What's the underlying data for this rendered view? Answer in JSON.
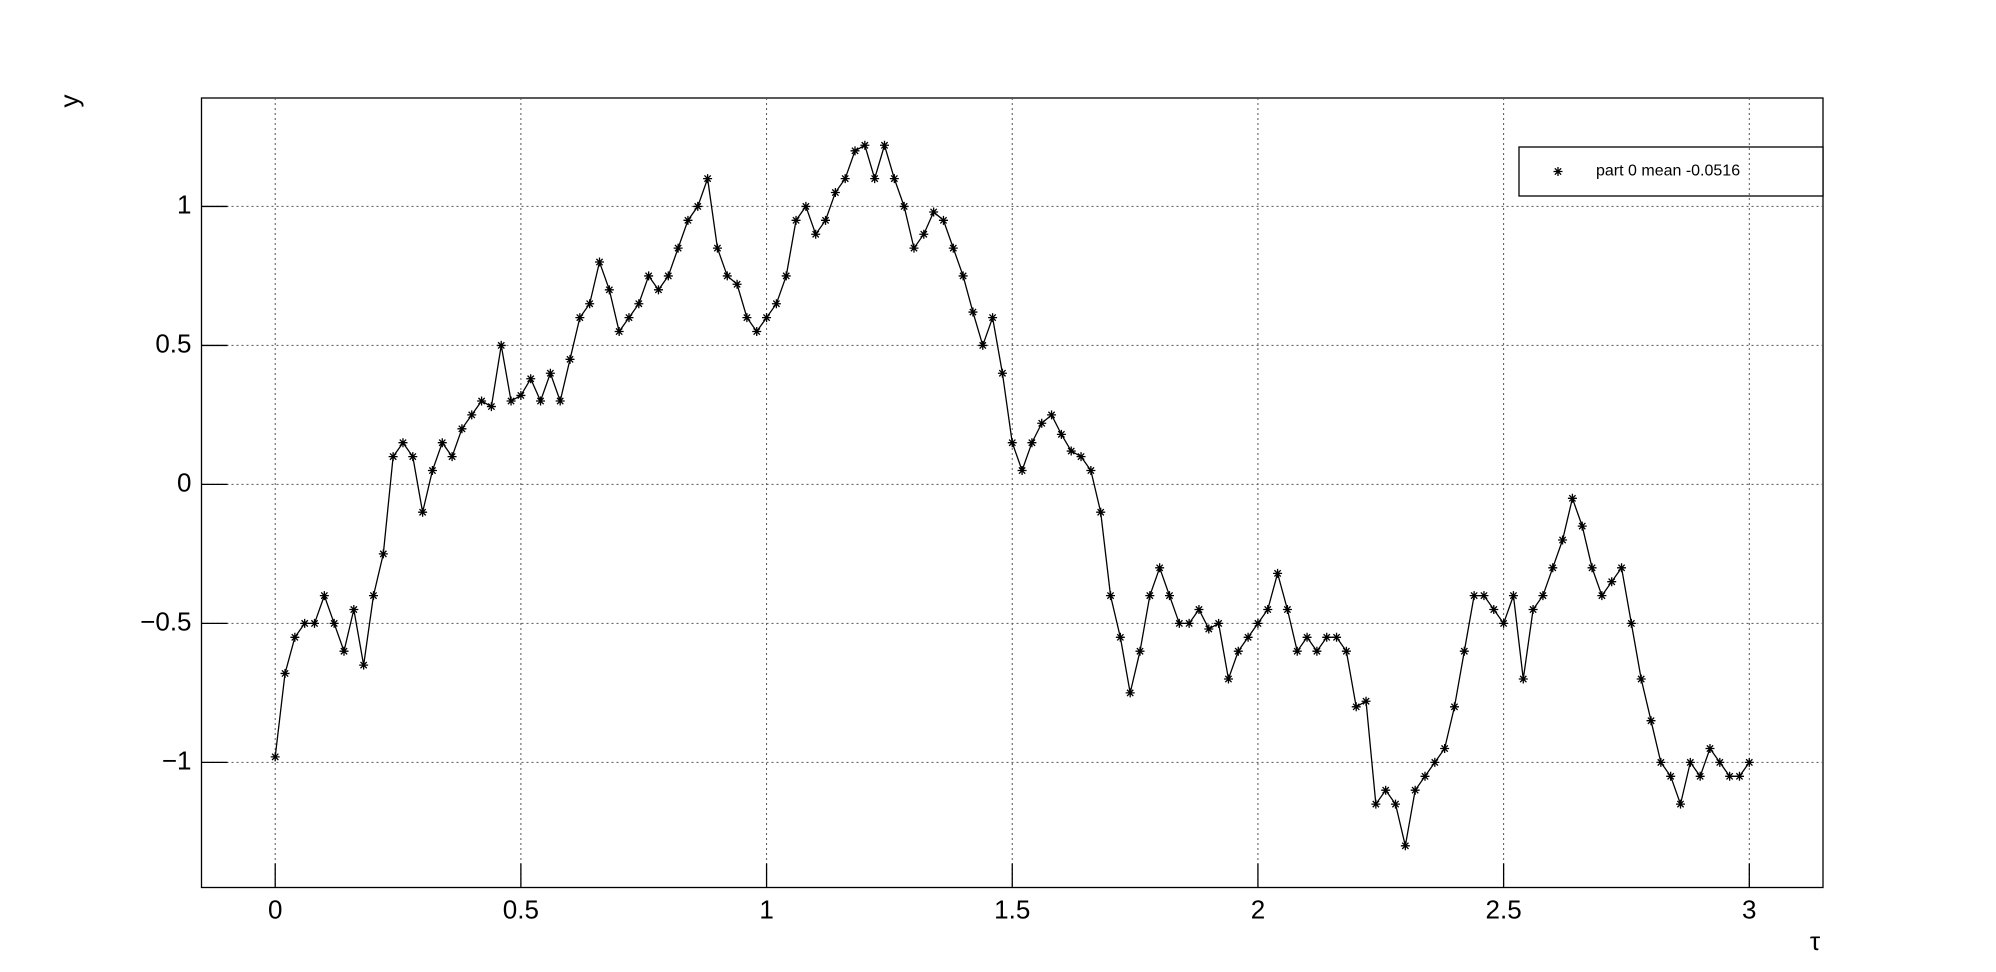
{
  "chart_data": {
    "type": "line",
    "x_label": "τ",
    "y_label": "y",
    "xlim": [
      -0.15,
      3.15
    ],
    "ylim": [
      -1.45,
      1.39
    ],
    "xticks": [
      0,
      0.5,
      1,
      1.5,
      2,
      2.5,
      3
    ],
    "yticks": [
      {
        "value": -1,
        "label": "−1"
      },
      {
        "value": -0.5,
        "label": "−0.5"
      },
      0,
      0.5,
      1
    ],
    "grid": true,
    "legend": "upper right",
    "x": [
      0,
      0.02,
      0.04,
      0.06,
      0.08,
      0.1,
      0.12,
      0.14,
      0.16,
      0.18,
      0.2,
      0.22,
      0.24,
      0.26,
      0.28,
      0.3,
      0.32,
      0.34,
      0.36,
      0.38,
      0.4,
      0.42,
      0.44,
      0.46,
      0.48,
      0.5,
      0.52,
      0.54,
      0.56,
      0.58,
      0.6,
      0.62,
      0.64,
      0.66,
      0.68,
      0.7,
      0.72,
      0.74,
      0.76,
      0.78,
      0.8,
      0.82,
      0.84,
      0.86,
      0.88,
      0.9,
      0.92,
      0.94,
      0.96,
      0.98,
      1,
      1.02,
      1.04,
      1.06,
      1.08,
      1.1,
      1.12,
      1.14,
      1.16,
      1.18,
      1.2,
      1.22,
      1.24,
      1.26,
      1.28,
      1.3,
      1.32,
      1.34,
      1.36,
      1.38,
      1.4,
      1.42,
      1.44,
      1.46,
      1.48,
      1.5,
      1.52,
      1.54,
      1.56,
      1.58,
      1.6,
      1.62,
      1.64,
      1.66,
      1.68,
      1.7,
      1.72,
      1.74,
      1.76,
      1.78,
      1.8,
      1.82,
      1.84,
      1.86,
      1.88,
      1.9,
      1.92,
      1.94,
      1.96,
      1.98,
      2,
      2.02,
      2.04,
      2.06,
      2.08,
      2.1,
      2.12,
      2.14,
      2.16,
      2.18,
      2.2,
      2.22,
      2.24,
      2.26,
      2.28,
      2.3,
      2.32,
      2.34,
      2.36,
      2.38,
      2.4,
      2.42,
      2.44,
      2.46,
      2.48,
      2.5,
      2.52,
      2.54,
      2.56,
      2.58,
      2.6,
      2.62,
      2.64,
      2.66,
      2.68,
      2.7,
      2.72,
      2.74,
      2.76,
      2.78,
      2.8,
      2.82,
      2.84,
      2.86,
      2.88,
      2.9,
      2.92,
      2.94,
      2.96,
      2.98,
      3
    ],
    "series": [
      {
        "name": "part 0  mean -0.0516",
        "color": "#000000",
        "values": [
          -0.98,
          -0.68,
          -0.55,
          -0.5,
          -0.5,
          -0.4,
          -0.5,
          -0.6,
          -0.45,
          -0.65,
          -0.4,
          -0.25,
          0.1,
          0.15,
          0.1,
          -0.1,
          0.05,
          0.15,
          0.1,
          0.2,
          0.25,
          0.3,
          0.28,
          0.5,
          0.3,
          0.32,
          0.38,
          0.3,
          0.4,
          0.3,
          0.45,
          0.6,
          0.65,
          0.8,
          0.7,
          0.55,
          0.6,
          0.65,
          0.75,
          0.7,
          0.75,
          0.85,
          0.95,
          1.0,
          1.1,
          0.85,
          0.75,
          0.72,
          0.6,
          0.55,
          0.6,
          0.65,
          0.75,
          0.95,
          1.0,
          0.9,
          0.95,
          1.05,
          1.1,
          1.2,
          1.22,
          1.1,
          1.22,
          1.1,
          1.0,
          0.85,
          0.9,
          0.98,
          0.95,
          0.85,
          0.75,
          0.62,
          0.5,
          0.6,
          0.4,
          0.15,
          0.05,
          0.15,
          0.22,
          0.25,
          0.18,
          0.12,
          0.1,
          0.05,
          -0.1,
          -0.4,
          -0.55,
          -0.75,
          -0.6,
          -0.4,
          -0.3,
          -0.4,
          -0.5,
          -0.5,
          -0.45,
          -0.52,
          -0.5,
          -0.7,
          -0.6,
          -0.55,
          -0.5,
          -0.45,
          -0.32,
          -0.45,
          -0.6,
          -0.55,
          -0.6,
          -0.55,
          -0.55,
          -0.6,
          -0.8,
          -0.78,
          -1.15,
          -1.1,
          -1.15,
          -1.3,
          -1.1,
          -1.05,
          -1.0,
          -0.95,
          -0.8,
          -0.6,
          -0.4,
          -0.4,
          -0.45,
          -0.5,
          -0.4,
          -0.7,
          -0.45,
          -0.4,
          -0.3,
          -0.2,
          -0.05,
          -0.15,
          -0.3,
          -0.4,
          -0.35,
          -0.3,
          -0.5,
          -0.7,
          -0.85,
          -1.0,
          -1.05,
          -1.15,
          -1.0,
          -1.05,
          -0.95,
          -1.0,
          -1.05,
          -1.05,
          -1.0
        ]
      }
    ]
  }
}
